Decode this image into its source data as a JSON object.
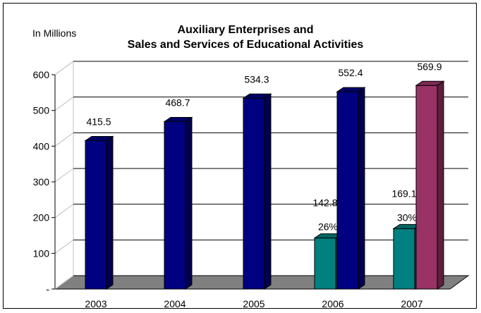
{
  "chart_data": {
    "type": "bar",
    "title": [
      "Auxiliary Enterprises and",
      "Sales and Services of Educational Activities"
    ],
    "ylabel": "In Millions",
    "ylim": [
      0,
      600
    ],
    "yticks": [
      {
        "value": 0,
        "label": "-"
      },
      {
        "value": 100,
        "label": "100"
      },
      {
        "value": 200,
        "label": "200"
      },
      {
        "value": 300,
        "label": "300"
      },
      {
        "value": 400,
        "label": "400"
      },
      {
        "value": 500,
        "label": "500"
      },
      {
        "value": 600,
        "label": "600"
      }
    ],
    "categories": [
      "2003",
      "2004",
      "2005",
      "2006",
      "2007"
    ],
    "grid": true,
    "three_d": true,
    "colors": {
      "total": "#000080",
      "total_highlight": "#993366",
      "share": "#008080",
      "floor": "#808080"
    },
    "totals": [
      {
        "category": "2003",
        "value": 415.5,
        "label": "415.5",
        "color": "#000080"
      },
      {
        "category": "2004",
        "value": 468.7,
        "label": "468.7",
        "color": "#000080"
      },
      {
        "category": "2005",
        "value": 534.3,
        "label": "534.3",
        "color": "#000080"
      },
      {
        "category": "2006",
        "value": 552.4,
        "label": "552.4",
        "color": "#000080"
      },
      {
        "category": "2007",
        "value": 569.9,
        "label": "569.9",
        "color": "#993366"
      }
    ],
    "shares": [
      {
        "category": "2006",
        "value": 142.8,
        "label": "142.8",
        "percent_label": "26%",
        "color": "#008080"
      },
      {
        "category": "2007",
        "value": 169.1,
        "label": "169.1",
        "percent_label": "30%",
        "color": "#008080"
      }
    ]
  }
}
